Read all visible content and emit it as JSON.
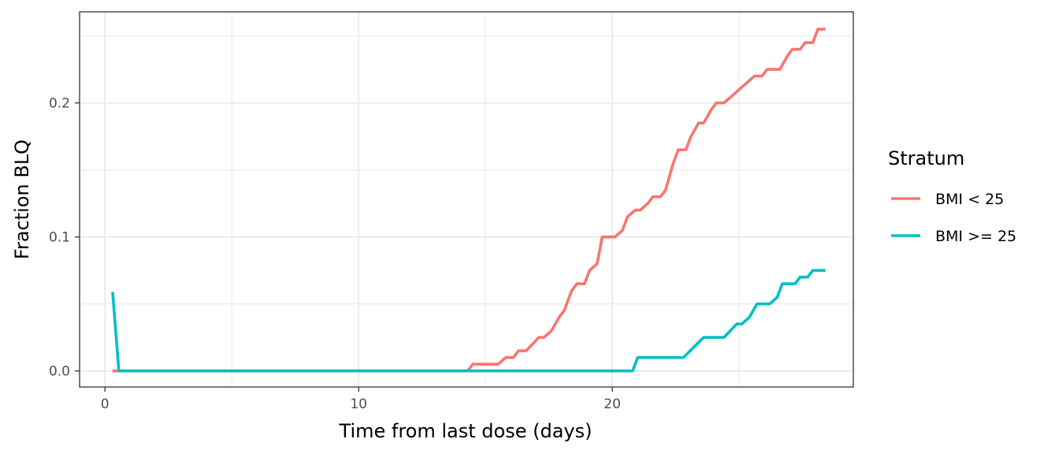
{
  "chart_data": {
    "type": "line",
    "title": "",
    "xlabel": "Time from last dose (days)",
    "ylabel": "Fraction BLQ",
    "xlim": [
      -1.0,
      29.5
    ],
    "ylim": [
      -0.012,
      0.268
    ],
    "x_ticks": [
      0,
      10,
      20
    ],
    "x_tick_labels": [
      "0",
      "10",
      "20"
    ],
    "x_minor_ticks": [
      5,
      15,
      25
    ],
    "y_ticks": [
      0.0,
      0.1,
      0.2
    ],
    "y_tick_labels": [
      "0.0",
      "0.1",
      "0.2"
    ],
    "y_minor_ticks": [
      0.05,
      0.15,
      0.25
    ],
    "grid": true,
    "legend": {
      "title": "Stratum",
      "position": "right"
    },
    "series": [
      {
        "name": "BMI < 25",
        "color": "#F8766D",
        "points": [
          [
            0.3,
            0.0
          ],
          [
            14.3,
            0.0
          ],
          [
            14.5,
            0.005
          ],
          [
            15.5,
            0.005
          ],
          [
            15.8,
            0.01
          ],
          [
            16.1,
            0.01
          ],
          [
            16.3,
            0.015
          ],
          [
            16.6,
            0.015
          ],
          [
            17.1,
            0.025
          ],
          [
            17.3,
            0.025
          ],
          [
            17.6,
            0.03
          ],
          [
            17.9,
            0.04
          ],
          [
            18.1,
            0.045
          ],
          [
            18.4,
            0.06
          ],
          [
            18.6,
            0.065
          ],
          [
            18.9,
            0.065
          ],
          [
            19.1,
            0.075
          ],
          [
            19.4,
            0.08
          ],
          [
            19.6,
            0.1
          ],
          [
            20.1,
            0.1
          ],
          [
            20.4,
            0.105
          ],
          [
            20.6,
            0.115
          ],
          [
            20.9,
            0.12
          ],
          [
            21.1,
            0.12
          ],
          [
            21.4,
            0.125
          ],
          [
            21.6,
            0.13
          ],
          [
            21.9,
            0.13
          ],
          [
            22.1,
            0.135
          ],
          [
            22.4,
            0.155
          ],
          [
            22.6,
            0.165
          ],
          [
            22.9,
            0.165
          ],
          [
            23.1,
            0.175
          ],
          [
            23.4,
            0.185
          ],
          [
            23.6,
            0.185
          ],
          [
            23.9,
            0.195
          ],
          [
            24.1,
            0.2
          ],
          [
            24.4,
            0.2
          ],
          [
            25.6,
            0.22
          ],
          [
            25.9,
            0.22
          ],
          [
            26.1,
            0.225
          ],
          [
            26.6,
            0.225
          ],
          [
            26.9,
            0.235
          ],
          [
            27.1,
            0.24
          ],
          [
            27.4,
            0.24
          ],
          [
            27.6,
            0.245
          ],
          [
            27.9,
            0.245
          ],
          [
            28.1,
            0.255
          ],
          [
            28.4,
            0.255
          ]
        ]
      },
      {
        "name": "BMI >= 25",
        "color": "#00BFC4",
        "points": [
          [
            0.3,
            0.059
          ],
          [
            0.55,
            0.0
          ],
          [
            20.8,
            0.0
          ],
          [
            21.0,
            0.01
          ],
          [
            22.8,
            0.01
          ],
          [
            23.6,
            0.025
          ],
          [
            24.4,
            0.025
          ],
          [
            24.9,
            0.035
          ],
          [
            25.1,
            0.035
          ],
          [
            25.4,
            0.04
          ],
          [
            25.7,
            0.05
          ],
          [
            26.2,
            0.05
          ],
          [
            26.5,
            0.055
          ],
          [
            26.7,
            0.065
          ],
          [
            27.2,
            0.065
          ],
          [
            27.4,
            0.07
          ],
          [
            27.7,
            0.07
          ],
          [
            27.9,
            0.075
          ],
          [
            28.4,
            0.075
          ]
        ]
      }
    ]
  }
}
